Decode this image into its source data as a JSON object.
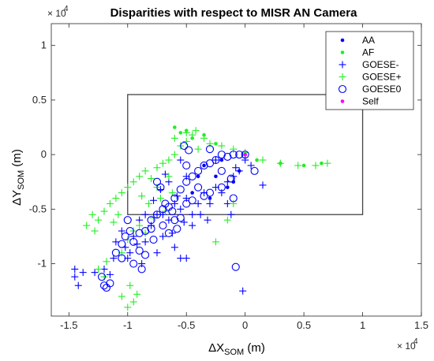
{
  "chart_data": {
    "type": "scatter",
    "title": "Disparities with respect to MISR AN Camera",
    "xlabel": {
      "prefix": "ΔX",
      "sub": "SOM",
      "suffix": " (m)"
    },
    "ylabel": {
      "prefix": "ΔY",
      "sub": "SOM",
      "suffix": " (m)"
    },
    "x_exponent_label": "× 10",
    "x_exponent": "4",
    "y_exponent_label": "× 10",
    "y_exponent": "4",
    "xlim": [
      -1.65,
      1.5
    ],
    "ylim": [
      -1.48,
      1.2
    ],
    "x_ticks": [
      -1.5,
      -1,
      -0.5,
      0,
      0.5,
      1,
      1.5
    ],
    "x_tick_labels": [
      "-1.5",
      "-1",
      "-0.5",
      "0",
      "0.5",
      "1",
      "1.5"
    ],
    "y_ticks": [
      -1,
      -0.5,
      0,
      0.5,
      1
    ],
    "y_tick_labels": [
      "-1",
      "-0.5",
      "0",
      "0.5",
      "1"
    ],
    "grid": false,
    "legend_position": "top-right",
    "reference_box": {
      "x0": -1.0,
      "x1": 1.0,
      "y0": -0.55,
      "y1": 0.55,
      "color": "#444444"
    },
    "series": [
      {
        "name": "AA",
        "marker": "dot",
        "color": "#0000ff",
        "points": [
          [
            -0.35,
            -0.1
          ],
          [
            -0.25,
            -0.2
          ],
          [
            -0.15,
            -0.3
          ],
          [
            -0.05,
            -0.15
          ],
          [
            0.0,
            0.0
          ],
          [
            -0.3,
            -0.4
          ],
          [
            -0.45,
            -0.35
          ],
          [
            -0.2,
            -0.05
          ],
          [
            -0.1,
            -0.25
          ],
          [
            -0.4,
            -0.2
          ]
        ]
      },
      {
        "name": "AF",
        "marker": "dot",
        "color": "#22ee22",
        "points": [
          [
            -0.55,
            0.2
          ],
          [
            -0.45,
            0.15
          ],
          [
            -0.35,
            0.18
          ],
          [
            -0.25,
            0.1
          ],
          [
            0.1,
            -0.05
          ],
          [
            0.3,
            -0.08
          ],
          [
            0.5,
            -0.1
          ],
          [
            0.65,
            -0.08
          ],
          [
            -0.6,
            0.25
          ],
          [
            -0.5,
            0.22
          ]
        ]
      },
      {
        "name": "GOESE-",
        "marker": "plus",
        "color": "#0000ff",
        "points": [
          [
            -1.45,
            -1.05
          ],
          [
            -1.42,
            -1.2
          ],
          [
            -1.45,
            -1.12
          ],
          [
            -1.38,
            -1.08
          ],
          [
            -1.28,
            -1.08
          ],
          [
            -1.2,
            -1.05
          ],
          [
            -1.15,
            -1.1
          ],
          [
            -1.1,
            -0.8
          ],
          [
            -1.05,
            -0.7
          ],
          [
            -1.02,
            -0.85
          ],
          [
            -0.98,
            -0.9
          ],
          [
            -0.95,
            -0.75
          ],
          [
            -0.9,
            -0.6
          ],
          [
            -0.85,
            -0.8
          ],
          [
            -0.8,
            -0.65
          ],
          [
            -0.75,
            -0.55
          ],
          [
            -0.7,
            -0.55
          ],
          [
            -0.65,
            -0.6
          ],
          [
            -0.6,
            -0.45
          ],
          [
            -0.55,
            -0.5
          ],
          [
            -0.5,
            -0.4
          ],
          [
            -0.45,
            -0.55
          ],
          [
            -0.4,
            -0.45
          ],
          [
            -0.35,
            -0.35
          ],
          [
            -0.3,
            -0.45
          ],
          [
            -0.25,
            -0.3
          ],
          [
            -0.2,
            -0.35
          ],
          [
            -0.15,
            -0.25
          ],
          [
            -0.1,
            -0.2
          ],
          [
            -0.05,
            -0.15
          ],
          [
            0.0,
            -0.05
          ],
          [
            0.05,
            -0.1
          ],
          [
            0.15,
            -0.28
          ],
          [
            -0.12,
            -0.55
          ],
          [
            -0.55,
            -0.95
          ],
          [
            -0.6,
            -0.85
          ],
          [
            -0.7,
            -0.75
          ],
          [
            -0.75,
            -0.9
          ],
          [
            -0.65,
            -0.25
          ],
          [
            -0.55,
            -0.05
          ],
          [
            -0.68,
            -0.18
          ],
          [
            -0.5,
            -0.2
          ],
          [
            -0.02,
            -1.25
          ],
          [
            -0.5,
            -0.95
          ],
          [
            -0.45,
            -0.65
          ],
          [
            -0.32,
            -0.6
          ],
          [
            -0.62,
            -0.72
          ],
          [
            -0.58,
            -0.38
          ],
          [
            -0.52,
            -0.62
          ],
          [
            -0.38,
            -0.55
          ],
          [
            -0.85,
            -0.55
          ],
          [
            -0.92,
            -0.82
          ],
          [
            -0.88,
            -1.0
          ],
          [
            -1.0,
            -0.95
          ],
          [
            -1.12,
            -0.95
          ],
          [
            -0.72,
            -0.32
          ],
          [
            -0.78,
            -0.42
          ],
          [
            -0.15,
            -0.45
          ],
          [
            -0.08,
            -0.12
          ],
          [
            -0.25,
            -0.05
          ]
        ]
      },
      {
        "name": "GOESE+",
        "marker": "plus",
        "color": "#22ee22",
        "points": [
          [
            -1.35,
            -0.65
          ],
          [
            -1.3,
            -0.55
          ],
          [
            -1.25,
            -0.6
          ],
          [
            -1.2,
            -0.52
          ],
          [
            -1.15,
            -0.45
          ],
          [
            -1.1,
            -0.4
          ],
          [
            -1.05,
            -0.35
          ],
          [
            -1.0,
            -0.3
          ],
          [
            -0.95,
            -0.25
          ],
          [
            -0.9,
            -0.2
          ],
          [
            -0.85,
            -0.15
          ],
          [
            -0.8,
            -0.22
          ],
          [
            -0.75,
            -0.12
          ],
          [
            -0.7,
            -0.08
          ],
          [
            -0.65,
            -0.05
          ],
          [
            -0.6,
            0.0
          ],
          [
            -0.55,
            0.08
          ],
          [
            -0.5,
            0.12
          ],
          [
            -0.45,
            0.18
          ],
          [
            -0.4,
            0.05
          ],
          [
            -0.35,
            0.15
          ],
          [
            -0.3,
            0.1
          ],
          [
            -0.2,
            0.08
          ],
          [
            -0.1,
            0.05
          ],
          [
            0.0,
            0.02
          ],
          [
            0.15,
            -0.05
          ],
          [
            0.3,
            -0.08
          ],
          [
            0.45,
            -0.1
          ],
          [
            0.6,
            -0.1
          ],
          [
            0.7,
            -0.08
          ],
          [
            -0.95,
            -0.7
          ],
          [
            -1.0,
            -0.78
          ],
          [
            -0.9,
            -0.65
          ],
          [
            -0.85,
            -0.72
          ],
          [
            -1.05,
            -0.9
          ],
          [
            -0.98,
            -1.2
          ],
          [
            -0.95,
            -1.35
          ],
          [
            -1.0,
            -1.4
          ],
          [
            -1.05,
            -1.3
          ],
          [
            -0.92,
            -1.28
          ],
          [
            -1.25,
            -1.05
          ],
          [
            -1.2,
            -1.12
          ],
          [
            -1.18,
            -0.98
          ],
          [
            -0.25,
            -0.8
          ],
          [
            -0.15,
            -0.6
          ],
          [
            -0.1,
            -0.45
          ],
          [
            -0.75,
            -0.3
          ],
          [
            -0.72,
            -0.4
          ],
          [
            -1.08,
            -0.55
          ],
          [
            -1.12,
            -0.62
          ],
          [
            -0.65,
            -0.2
          ],
          [
            -0.62,
            -0.35
          ],
          [
            -0.82,
            -0.45
          ],
          [
            -0.88,
            -0.38
          ],
          [
            -0.78,
            -0.58
          ],
          [
            -0.68,
            -0.52
          ],
          [
            -1.28,
            -0.7
          ],
          [
            -0.6,
            0.15
          ],
          [
            -0.5,
            0.2
          ],
          [
            -0.42,
            0.22
          ]
        ]
      },
      {
        "name": "GOESE0",
        "marker": "circle",
        "color": "#0000ff",
        "points": [
          [
            -1.2,
            -1.2
          ],
          [
            -1.18,
            -1.22
          ],
          [
            -1.15,
            -1.18
          ],
          [
            -1.22,
            -1.12
          ],
          [
            -1.1,
            -0.9
          ],
          [
            -1.05,
            -0.82
          ],
          [
            -1.02,
            -0.75
          ],
          [
            -0.98,
            -0.7
          ],
          [
            -0.95,
            -0.8
          ],
          [
            -0.9,
            -0.88
          ],
          [
            -0.85,
            -0.7
          ],
          [
            -0.8,
            -0.6
          ],
          [
            -0.75,
            -0.55
          ],
          [
            -0.7,
            -0.5
          ],
          [
            -0.65,
            -0.48
          ],
          [
            -0.6,
            -0.4
          ],
          [
            -0.55,
            -0.32
          ],
          [
            -0.5,
            -0.25
          ],
          [
            -0.45,
            -0.2
          ],
          [
            -0.4,
            -0.15
          ],
          [
            -0.35,
            -0.1
          ],
          [
            -0.3,
            -0.08
          ],
          [
            -0.25,
            -0.05
          ],
          [
            -0.2,
            0.0
          ],
          [
            -0.15,
            -0.02
          ],
          [
            -0.1,
            0.0
          ],
          [
            -0.05,
            0.0
          ],
          [
            0.0,
            0.0
          ],
          [
            0.08,
            -0.15
          ],
          [
            -0.1,
            -0.4
          ],
          [
            -0.2,
            -0.3
          ],
          [
            -0.3,
            -0.35
          ],
          [
            -0.4,
            -0.3
          ],
          [
            -0.5,
            -0.45
          ],
          [
            -0.6,
            -0.6
          ],
          [
            -0.7,
            -0.65
          ],
          [
            -0.8,
            -0.68
          ],
          [
            -0.9,
            -0.72
          ],
          [
            -0.75,
            -0.25
          ],
          [
            -0.72,
            -0.3
          ],
          [
            -0.68,
            -0.45
          ],
          [
            -0.62,
            -0.52
          ],
          [
            -0.55,
            -0.58
          ],
          [
            -0.5,
            -0.1
          ],
          [
            -0.52,
            0.08
          ],
          [
            -0.48,
            0.04
          ],
          [
            -0.3,
            0.05
          ],
          [
            -0.2,
            -0.15
          ],
          [
            -0.12,
            -0.22
          ],
          [
            -0.08,
            -1.03
          ],
          [
            -1.0,
            -0.6
          ],
          [
            -1.05,
            -0.95
          ],
          [
            -0.95,
            -1.0
          ],
          [
            -0.88,
            -1.05
          ],
          [
            -0.85,
            -0.92
          ],
          [
            -0.78,
            -0.78
          ],
          [
            -0.65,
            -0.72
          ],
          [
            -0.58,
            -0.68
          ],
          [
            -0.45,
            -0.42
          ],
          [
            -0.35,
            -0.38
          ]
        ]
      },
      {
        "name": "Self",
        "marker": "dot",
        "color": "#ff00ff",
        "points": [
          [
            0.0,
            0.0
          ]
        ]
      }
    ]
  }
}
